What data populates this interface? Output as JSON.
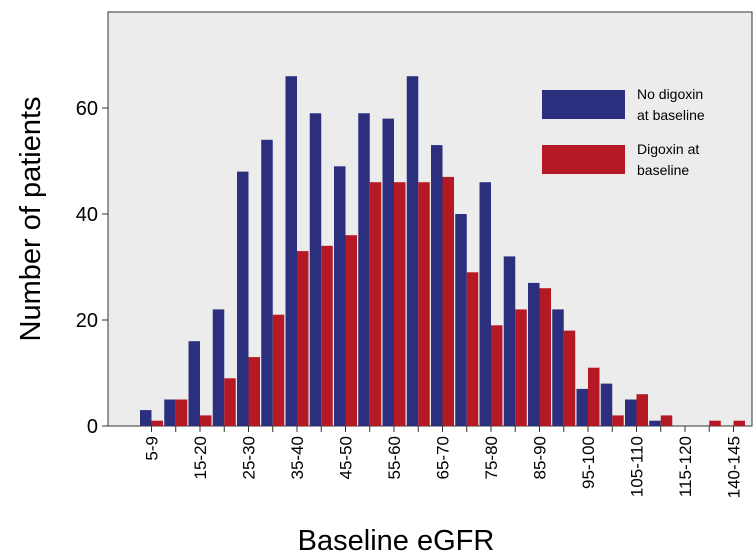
{
  "chart_data": {
    "type": "bar",
    "title": "",
    "xlabel": "Baseline eGFR",
    "ylabel": "Number of patients",
    "ylim": [
      0,
      75
    ],
    "yticks": [
      0,
      20,
      40,
      60
    ],
    "grid": false,
    "legend_position": "top-right",
    "categories": [
      "5-9",
      "10-14",
      "15-20",
      "20-25",
      "25-30",
      "30-35",
      "35-40",
      "40-45",
      "45-50",
      "50-55",
      "55-60",
      "60-65",
      "65-70",
      "70-75",
      "75-80",
      "80-85",
      "85-90",
      "90-95",
      "95-100",
      "100-105",
      "105-110",
      "110-115",
      "115-120",
      "120-140",
      "140-145"
    ],
    "tick_labels": [
      "5-9",
      "",
      "15-20",
      "",
      "25-30",
      "",
      "35-40",
      "",
      "45-50",
      "",
      "55-60",
      "",
      "65-70",
      "",
      "75-80",
      "",
      "85-90",
      "",
      "95-100",
      "",
      "105-110",
      "",
      "115-120",
      "",
      "140-145"
    ],
    "series": [
      {
        "name": "No digoxin at baseline",
        "legend_lines": [
          "No digoxin",
          "at baseline"
        ],
        "color": "#2b2f7d",
        "values": [
          3,
          5,
          16,
          22,
          48,
          54,
          66,
          59,
          49,
          59,
          58,
          66,
          53,
          40,
          46,
          32,
          27,
          22,
          7,
          8,
          5,
          1,
          0,
          0,
          0
        ]
      },
      {
        "name": "Digoxin at baseline",
        "legend_lines": [
          "Digoxin at",
          "baseline"
        ],
        "color": "#b51a24",
        "values": [
          1,
          5,
          2,
          9,
          13,
          21,
          33,
          34,
          36,
          46,
          46,
          46,
          47,
          29,
          19,
          22,
          26,
          18,
          11,
          2,
          6,
          2,
          0,
          1,
          1
        ]
      }
    ]
  }
}
